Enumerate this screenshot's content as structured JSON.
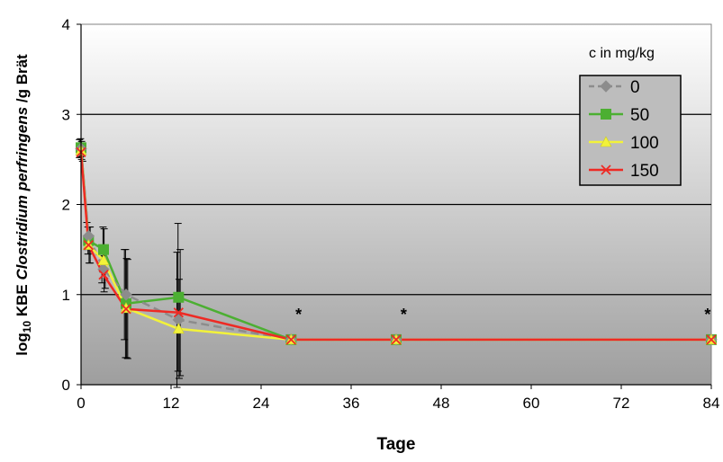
{
  "chart_data": {
    "type": "line",
    "xlabel": "Tage",
    "ylabel_prefix": "log",
    "ylabel_sub": "10",
    "ylabel_kbe": " KBE ",
    "ylabel_italic": "Clostridium perfringens",
    "ylabel_suffix": " /g Brät",
    "xlim": [
      0,
      84
    ],
    "ylim": [
      0,
      4
    ],
    "xticks": [
      0,
      12,
      24,
      36,
      48,
      60,
      72,
      84
    ],
    "yticks": [
      0,
      1,
      2,
      3,
      4
    ],
    "grid": "horizontal",
    "background": "gradient light-to-dark gray",
    "legend_title": "c in mg/kg",
    "legend_position": "top-right",
    "series": [
      {
        "name": "0",
        "color": "#8c8c8c",
        "marker": "diamond",
        "dash": "dashed",
        "x": [
          0,
          1,
          3,
          6,
          13,
          28,
          42,
          84
        ],
        "y": [
          2.62,
          1.65,
          1.28,
          1.0,
          0.72,
          0.5,
          0.5,
          0.5
        ],
        "err": [
          0.1,
          0.15,
          0.15,
          0.5,
          0.75,
          0,
          0,
          0
        ]
      },
      {
        "name": "50",
        "color": "#4caf32",
        "marker": "square",
        "dash": "solid",
        "x": [
          0,
          1,
          3,
          6,
          13,
          28,
          42,
          84
        ],
        "y": [
          2.63,
          1.6,
          1.5,
          0.9,
          0.97,
          0.5,
          0.5,
          0.5
        ],
        "err": [
          0.1,
          0.15,
          0.25,
          0.6,
          0.82,
          0,
          0,
          0
        ]
      },
      {
        "name": "100",
        "color": "#f2f23a",
        "marker": "triangle",
        "dash": "solid",
        "x": [
          0,
          1,
          3,
          6,
          13,
          28,
          42,
          84
        ],
        "y": [
          2.6,
          1.55,
          1.38,
          0.85,
          0.62,
          0.5,
          0.5,
          0.5
        ],
        "err": [
          0.1,
          0.2,
          0.35,
          0.55,
          0.55,
          0,
          0,
          0
        ]
      },
      {
        "name": "150",
        "color": "#ee2a24",
        "marker": "x",
        "dash": "solid",
        "x": [
          0,
          1,
          3,
          6,
          13,
          28,
          42,
          84
        ],
        "y": [
          2.58,
          1.55,
          1.22,
          0.84,
          0.8,
          0.5,
          0.5,
          0.5
        ],
        "err": [
          0.1,
          0.2,
          0.15,
          0.55,
          0.7,
          0,
          0,
          0
        ]
      }
    ],
    "annotations": [
      {
        "x": 29,
        "y": 0.72,
        "text": "*"
      },
      {
        "x": 43,
        "y": 0.72,
        "text": "*"
      },
      {
        "x": 83.5,
        "y": 0.72,
        "text": "*"
      }
    ]
  }
}
